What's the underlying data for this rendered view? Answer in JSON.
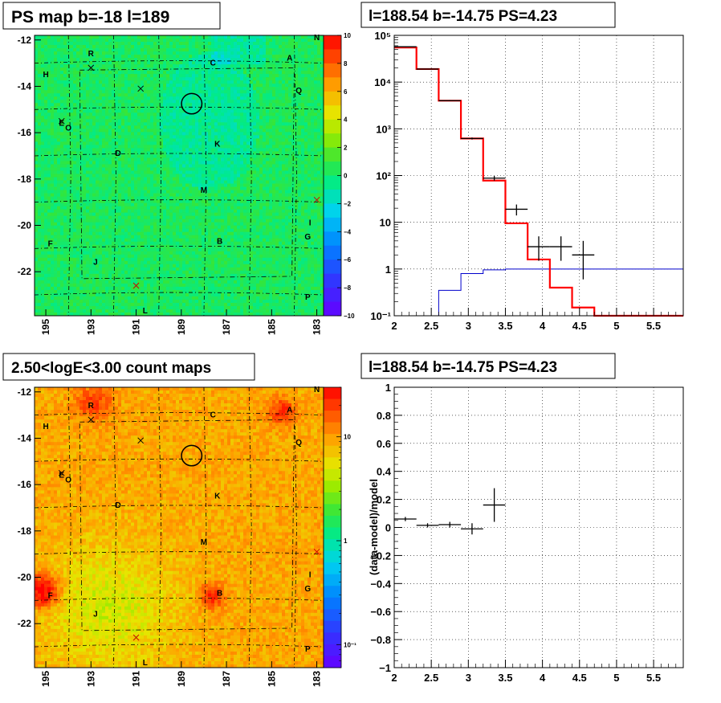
{
  "panels": {
    "ps_map": {
      "title": "PS map b=-18 l=189",
      "y_ticks": [
        "-12",
        "-14",
        "-16",
        "-18",
        "-20",
        "-22"
      ],
      "x_ticks": [
        "195",
        "193",
        "191",
        "189",
        "187",
        "185",
        "183"
      ],
      "colorbar_ticks": [
        "10",
        "8",
        "6",
        "4",
        "2",
        "0",
        "−2",
        "−4",
        "−6",
        "−8",
        "−10"
      ],
      "letters": [
        {
          "text": "N",
          "l": 183.0,
          "b": -12.0
        },
        {
          "text": "R",
          "l": 193.0,
          "b": -12.7
        },
        {
          "text": "A",
          "l": 184.2,
          "b": -12.9
        },
        {
          "text": "C",
          "l": 187.6,
          "b": -13.1
        },
        {
          "text": "H",
          "l": 195.0,
          "b": -13.6
        },
        {
          "text": "Q",
          "l": 183.8,
          "b": -14.3
        },
        {
          "text": "E",
          "l": 194.3,
          "b": -15.7
        },
        {
          "text": "O",
          "l": 194.0,
          "b": -15.9
        },
        {
          "text": "K",
          "l": 187.4,
          "b": -16.6
        },
        {
          "text": "D",
          "l": 191.8,
          "b": -17.0
        },
        {
          "text": "M",
          "l": 188.0,
          "b": -18.6
        },
        {
          "text": "I",
          "l": 183.3,
          "b": -20.0
        },
        {
          "text": "G",
          "l": 183.4,
          "b": -20.6
        },
        {
          "text": "F",
          "l": 194.8,
          "b": -20.9
        },
        {
          "text": "B",
          "l": 187.3,
          "b": -20.8
        },
        {
          "text": "J",
          "l": 192.8,
          "b": -21.7
        },
        {
          "text": "P",
          "l": 183.4,
          "b": -23.2
        },
        {
          "text": "L",
          "l": 190.6,
          "b": -23.8
        }
      ]
    },
    "count_map": {
      "title": "2.50<logE<3.00 count maps",
      "y_ticks": [
        "-12",
        "-14",
        "-16",
        "-18",
        "-20",
        "-22"
      ],
      "x_ticks": [
        "195",
        "193",
        "191",
        "189",
        "187",
        "185",
        "183"
      ],
      "colorbar_ticks": [
        "10",
        "1",
        "10⁻¹"
      ],
      "letters": [
        {
          "text": "N",
          "l": 183.0,
          "b": -12.0
        },
        {
          "text": "R",
          "l": 193.0,
          "b": -12.7
        },
        {
          "text": "A",
          "l": 184.2,
          "b": -12.9
        },
        {
          "text": "C",
          "l": 187.6,
          "b": -13.1
        },
        {
          "text": "H",
          "l": 195.0,
          "b": -13.6
        },
        {
          "text": "Q",
          "l": 183.8,
          "b": -14.3
        },
        {
          "text": "E",
          "l": 194.3,
          "b": -15.7
        },
        {
          "text": "O",
          "l": 194.0,
          "b": -15.9
        },
        {
          "text": "K",
          "l": 187.4,
          "b": -16.6
        },
        {
          "text": "D",
          "l": 191.8,
          "b": -17.0
        },
        {
          "text": "M",
          "l": 188.0,
          "b": -18.6
        },
        {
          "text": "I",
          "l": 183.3,
          "b": -20.0
        },
        {
          "text": "G",
          "l": 183.4,
          "b": -20.6
        },
        {
          "text": "F",
          "l": 194.8,
          "b": -20.9
        },
        {
          "text": "B",
          "l": 187.3,
          "b": -20.8
        },
        {
          "text": "J",
          "l": 192.8,
          "b": -21.7
        },
        {
          "text": "P",
          "l": 183.4,
          "b": -23.2
        },
        {
          "text": "L",
          "l": 190.6,
          "b": -23.8
        }
      ]
    },
    "spectrum": {
      "title": "l=188.54 b=-14.75 PS=4.23",
      "x_ticks": [
        "2",
        "2.5",
        "3",
        "3.5",
        "4",
        "4.5",
        "5",
        "5.5"
      ],
      "y_ticks": [
        "10⁻¹",
        "1",
        "10",
        "10²",
        "10³",
        "10⁴",
        "10⁵"
      ]
    },
    "residual": {
      "title": "l=188.54 b=-14.75 PS=4.23",
      "ylabel": "(data-model)/model",
      "x_ticks": [
        "2",
        "2.5",
        "3",
        "3.5",
        "4",
        "4.5",
        "5",
        "5.5"
      ],
      "y_ticks": [
        "1",
        "0.8",
        "0.6",
        "0.4",
        "0.2",
        "0",
        "−0.2",
        "−0.4",
        "−0.6",
        "−0.8",
        "−1"
      ]
    }
  },
  "colors": {
    "total_model": "#ff0000",
    "ps_model": "#0000cc",
    "data": "#000000"
  },
  "chart_data": [
    {
      "type": "heatmap",
      "panel": "ps_map",
      "xlim": [
        195.5,
        182.7
      ],
      "ylim": [
        -23.9,
        -11.8
      ],
      "zlim": [
        -10,
        10
      ],
      "circle": {
        "l": 188.54,
        "b": -14.75,
        "r": 0.45
      },
      "crosses": [
        [
          193.0,
          -13.2
        ],
        [
          190.8,
          -14.1
        ],
        [
          194.3,
          -15.5
        ],
        [
          183.0,
          -18.9
        ],
        [
          191.0,
          -22.6
        ]
      ]
    },
    {
      "type": "heatmap",
      "panel": "count_map",
      "xlim": [
        195.5,
        182.7
      ],
      "ylim": [
        -23.9,
        -11.8
      ],
      "zscale": "log",
      "zlim": [
        0.06,
        30
      ],
      "circle": {
        "l": 188.54,
        "b": -14.75,
        "r": 0.45
      },
      "crosses": [
        [
          193.0,
          -13.2
        ],
        [
          190.8,
          -14.1
        ],
        [
          194.3,
          -15.5
        ],
        [
          183.0,
          -18.9
        ],
        [
          191.0,
          -22.6
        ]
      ]
    },
    {
      "type": "line",
      "panel": "spectrum",
      "xlim": [
        2,
        5.9
      ],
      "ylim": [
        0.1,
        100000
      ],
      "yscale": "log",
      "grid": true,
      "bin_edges": [
        2.0,
        2.3,
        2.6,
        2.9,
        3.2,
        3.5,
        3.8,
        4.1,
        4.4,
        4.7,
        5.0,
        5.3,
        5.6,
        5.9
      ],
      "series": [
        {
          "role": "total_model",
          "values": [
            55000,
            19000,
            4000,
            620,
            78,
            9.5,
            1.6,
            0.4,
            0.15,
            0.1,
            0.1,
            0.1,
            0.1
          ]
        },
        {
          "role": "ps_model",
          "values": [
            0.1,
            0.1,
            0.35,
            0.8,
            0.96,
            1.0,
            1.0,
            1.0,
            1.0,
            1.0,
            1.0,
            1.0,
            1.0
          ]
        },
        {
          "role": "data",
          "points": [
            {
              "x": 2.15,
              "y": 57000,
              "xerr": 0.15,
              "ylo": 56000,
              "yhi": 58000
            },
            {
              "x": 2.45,
              "y": 19000,
              "xerr": 0.15,
              "ylo": 18700,
              "yhi": 19300
            },
            {
              "x": 2.75,
              "y": 4000,
              "xerr": 0.15,
              "ylo": 3900,
              "yhi": 4100
            },
            {
              "x": 3.05,
              "y": 620,
              "xerr": 0.15,
              "ylo": 590,
              "yhi": 650
            },
            {
              "x": 3.35,
              "y": 88,
              "xerr": 0.15,
              "ylo": 78,
              "yhi": 98
            },
            {
              "x": 3.65,
              "y": 19,
              "xerr": 0.15,
              "ylo": 14,
              "yhi": 24
            },
            {
              "x": 3.95,
              "y": 3,
              "xerr": 0.15,
              "ylo": 1.5,
              "yhi": 5
            },
            {
              "x": 4.25,
              "y": 3,
              "xerr": 0.15,
              "ylo": 1.5,
              "yhi": 5
            },
            {
              "x": 4.55,
              "y": 2,
              "xerr": 0.15,
              "ylo": 0.6,
              "yhi": 4
            }
          ]
        }
      ]
    },
    {
      "type": "scatter",
      "panel": "residual",
      "xlim": [
        2,
        5.9
      ],
      "ylim": [
        -1,
        1
      ],
      "grid": true,
      "points": [
        {
          "x": 2.15,
          "y": 0.06,
          "xerr": 0.15,
          "yerr": 0.015
        },
        {
          "x": 2.45,
          "y": 0.015,
          "xerr": 0.15,
          "yerr": 0.015
        },
        {
          "x": 2.75,
          "y": 0.02,
          "xerr": 0.15,
          "yerr": 0.02
        },
        {
          "x": 3.05,
          "y": -0.01,
          "xerr": 0.15,
          "yerr": 0.04
        },
        {
          "x": 3.35,
          "y": 0.16,
          "xerr": 0.15,
          "yerr": 0.12
        }
      ]
    }
  ]
}
